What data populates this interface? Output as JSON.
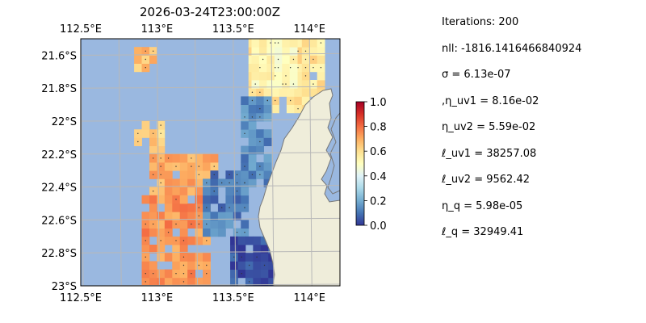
{
  "chart_data": {
    "type": "heatmap",
    "title": "2026-03-24T23:00:00Z",
    "x_ticks": [
      "112.5°E",
      "113°E",
      "113.5°E",
      "114°E"
    ],
    "x_tick_values": [
      112.5,
      113.0,
      113.5,
      114.0
    ],
    "y_ticks": [
      "21.6°S",
      "21.8°S",
      "22°S",
      "22.2°S",
      "22.4°S",
      "22.6°S",
      "22.8°S",
      "23°S"
    ],
    "y_tick_values": [
      -21.6,
      -21.8,
      -22.0,
      -22.2,
      -22.4,
      -22.6,
      -22.8,
      -23.0
    ],
    "xlim": [
      112.5,
      114.2
    ],
    "ylim": [
      -23.0,
      -21.5
    ],
    "grid": true,
    "colorbar": {
      "colormap": "RdYlBu_r",
      "range": [
        0.0,
        1.0
      ],
      "ticks": [
        "0.0",
        "0.2",
        "0.4",
        "0.6",
        "0.8",
        "1.0"
      ],
      "tick_values": [
        0.0,
        0.2,
        0.4,
        0.6,
        0.8,
        1.0
      ]
    },
    "colors": {
      "ocean": "#9ab8e0",
      "land": "#efedda",
      "coast": "#777777",
      "grid": "#b8b8b8"
    },
    "regions": [
      {
        "name": "northeast-yellow",
        "lon": [
          113.6,
          114.1
        ],
        "lat": [
          -21.95,
          -21.5
        ],
        "value": 0.58
      },
      {
        "name": "northeast-core",
        "lon": [
          113.62,
          113.9
        ],
        "lat": [
          -21.8,
          -21.5
        ],
        "value": 0.52
      },
      {
        "name": "northwest-patch",
        "lon": [
          112.85,
          112.97
        ],
        "lat": [
          -21.7,
          -21.55
        ],
        "value": 0.66
      },
      {
        "name": "west-upper",
        "lon": [
          112.85,
          113.05
        ],
        "lat": [
          -22.2,
          -22.0
        ],
        "value": 0.63
      },
      {
        "name": "west-orange",
        "lon": [
          112.95,
          113.4
        ],
        "lat": [
          -22.45,
          -22.2
        ],
        "value": 0.7
      },
      {
        "name": "west-lower",
        "lon": [
          112.9,
          113.35
        ],
        "lat": [
          -23.0,
          -22.45
        ],
        "value": 0.74
      },
      {
        "name": "central-purple",
        "lon": [
          113.3,
          113.6
        ],
        "lat": [
          -22.7,
          -22.3
        ],
        "value": 0.12
      },
      {
        "name": "coastal-purple",
        "lon": [
          113.55,
          113.75
        ],
        "lat": [
          -22.4,
          -21.85
        ],
        "value": 0.14
      },
      {
        "name": "southeast-blue",
        "lon": [
          113.48,
          113.75
        ],
        "lat": [
          -23.0,
          -22.7
        ],
        "value": 0.04
      }
    ]
  },
  "params": [
    "Iterations: 200",
    "nll: -1816.1416466840924",
    "σ = 6.13e-07",
    ",η_uv1 = 8.16e-02",
    "η_uv2 = 5.59e-02",
    "ℓ_uv1 = 38257.08",
    "ℓ_uv2 = 9562.42",
    "η_q = 5.98e-05",
    "ℓ_q = 32949.41"
  ]
}
